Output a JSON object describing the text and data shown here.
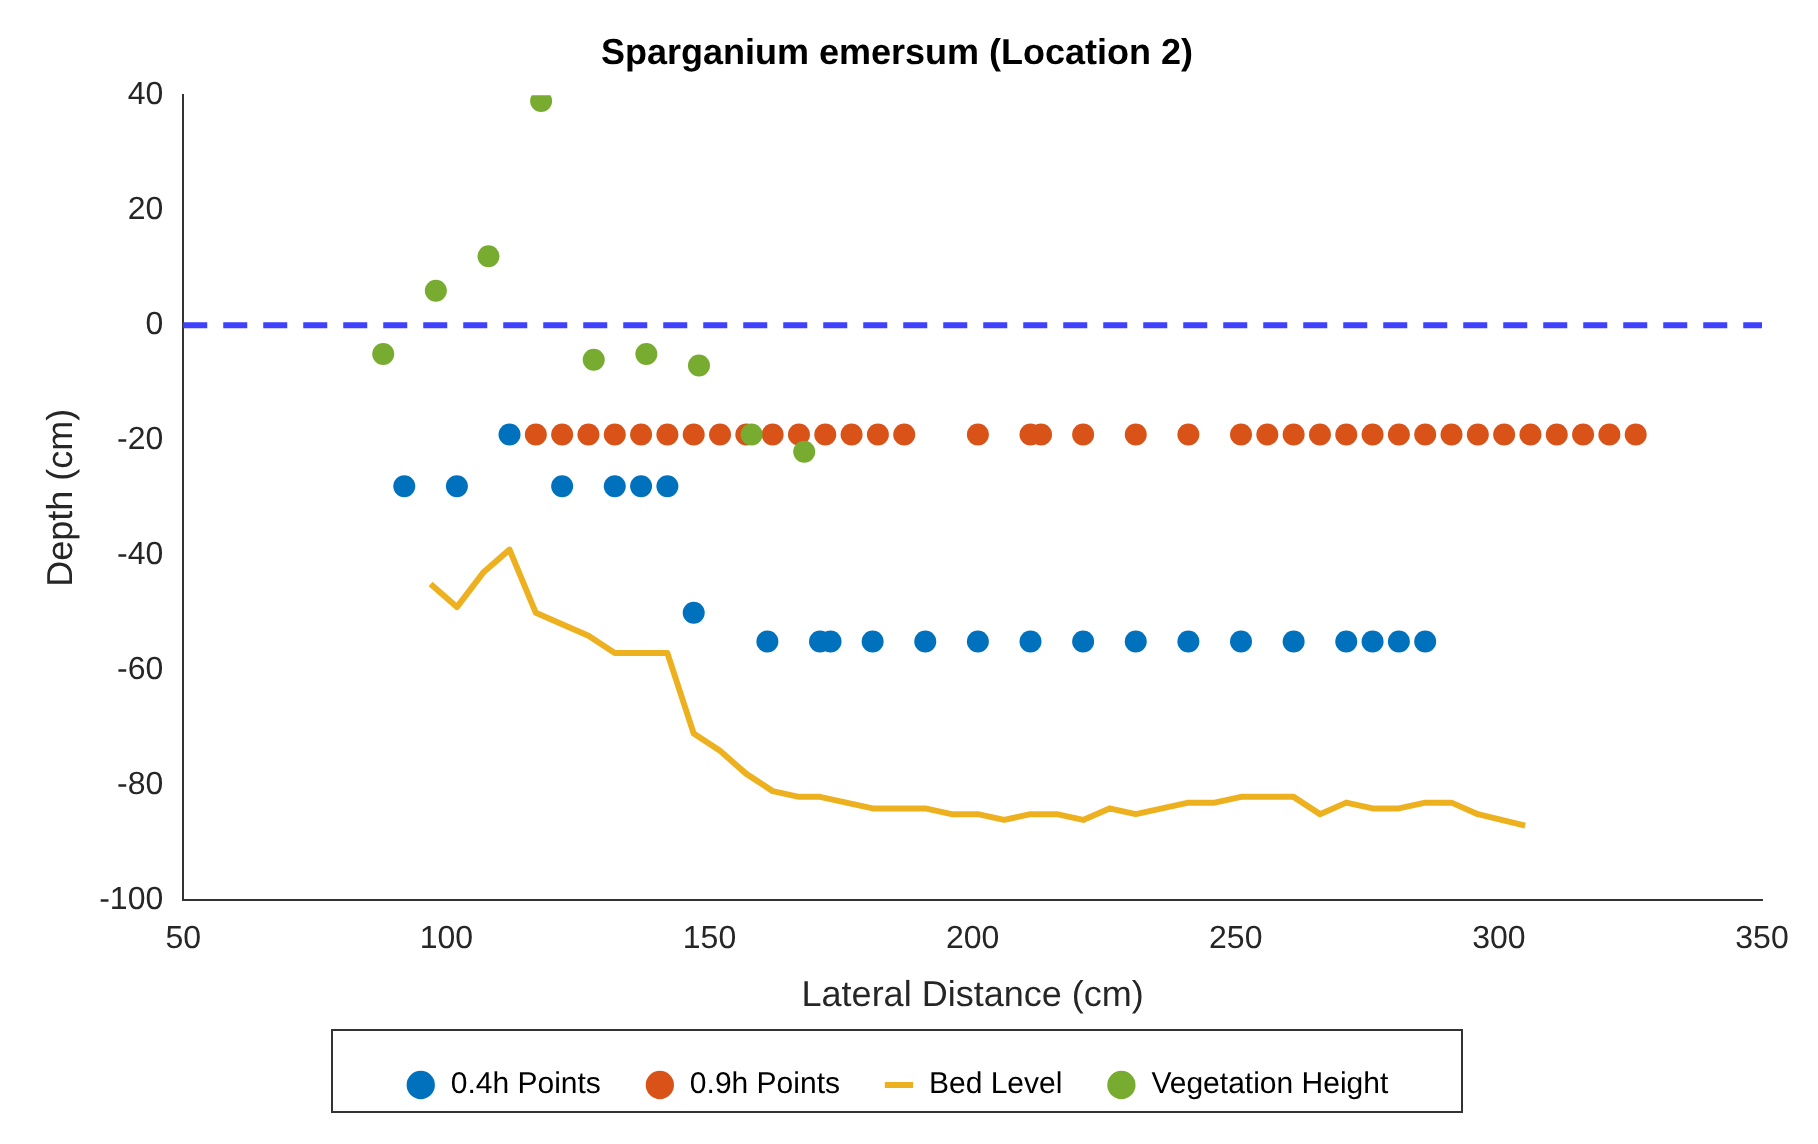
{
  "chart_data": {
    "type": "scatter",
    "title": "Sparganium emersum (Location 2)",
    "xlabel": "Lateral Distance (cm)",
    "ylabel": "Depth (cm)",
    "xlim": [
      50,
      350
    ],
    "xticks": [
      50,
      100,
      150,
      200,
      250,
      300,
      350
    ],
    "ylim": [
      -100,
      40
    ],
    "yticks": [
      -100,
      -80,
      -60,
      -40,
      -20,
      0,
      20,
      40
    ],
    "grid": false,
    "legend": "bottom",
    "marker": "circle",
    "ref_lines": [
      {
        "axis": "y",
        "value": 0,
        "color": "#4040ff",
        "line_style": "dashed"
      }
    ],
    "series": [
      {
        "name": "0.4h Points",
        "color": "#0072bd",
        "x": [
          92,
          102,
          112,
          122,
          132,
          137,
          142,
          147,
          161,
          171,
          173,
          181,
          191,
          201,
          211,
          221,
          231,
          241,
          251,
          261,
          271,
          276,
          281,
          286
        ],
        "values": [
          -28,
          -28,
          -19,
          -28,
          -28,
          -28,
          -28,
          -50,
          -55,
          -55,
          -55,
          -55,
          -55,
          -55,
          -55,
          -55,
          -55,
          -55,
          -55,
          -55,
          -55,
          -55,
          -55,
          -55
        ]
      },
      {
        "name": "0.9h Points",
        "color": "#d95319",
        "x": [
          117,
          122,
          127,
          132,
          137,
          142,
          147,
          152,
          157,
          162,
          167,
          172,
          177,
          182,
          187,
          201,
          211,
          213,
          221,
          231,
          241,
          251,
          256,
          261,
          266,
          271,
          276,
          281,
          286,
          291,
          296,
          301,
          306,
          311,
          316,
          321,
          326
        ],
        "values": [
          -19,
          -19,
          -19,
          -19,
          -19,
          -19,
          -19,
          -19,
          -19,
          -19,
          -19,
          -19,
          -19,
          -19,
          -19,
          -19,
          -19,
          -19,
          -19,
          -19,
          -19,
          -19,
          -19,
          -19,
          -19,
          -19,
          -19,
          -19,
          -19,
          -19,
          -19,
          -19,
          -19,
          -19,
          -19,
          -19,
          -19
        ]
      },
      {
        "name": "Bed Level",
        "type": "line",
        "color": "#edb120",
        "line_style": "solid",
        "marker": "none",
        "x": [
          97,
          102,
          107,
          112,
          117,
          127,
          132,
          142,
          147,
          152,
          157,
          162,
          167,
          171,
          181,
          191,
          196,
          201,
          206,
          211,
          216,
          221,
          226,
          231,
          241,
          246,
          251,
          261,
          266,
          271,
          276,
          281,
          286,
          291,
          296,
          305
        ],
        "values": [
          -45,
          -49,
          -43,
          -39,
          -50,
          -54,
          -57,
          -57,
          -71,
          -74,
          -78,
          -81,
          -82,
          -82,
          -84,
          -84,
          -85,
          -85,
          -86,
          -85,
          -85,
          -86,
          -84,
          -85,
          -83,
          -83,
          -82,
          -82,
          -85,
          -83,
          -84,
          -84,
          -83,
          -83,
          -85,
          -87
        ]
      },
      {
        "name": "Vegetation Height",
        "color": "#77ac30",
        "x": [
          88,
          98,
          108,
          118,
          128,
          138,
          148,
          158,
          168
        ],
        "values": [
          -5,
          6,
          12,
          39,
          -6,
          -5,
          -7,
          -19,
          -22
        ]
      }
    ]
  }
}
